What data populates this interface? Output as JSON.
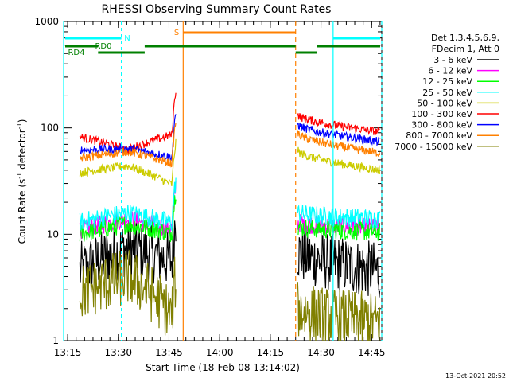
{
  "chart_data": {
    "type": "line",
    "title": "RHESSI Observing Summary Count Rates",
    "xlabel": "Start Time (18-Feb-08 13:14:02)",
    "ylabel_main": "Count Rate (s",
    "ylabel_sup1": "-1",
    "ylabel_mid": " detector",
    "ylabel_sup2": "-1",
    "ylabel_end": ")",
    "x_range_min": [
      13.23,
      14.8
    ],
    "y_range": [
      1,
      1000
    ],
    "y_scale": "log",
    "x_ticks": [
      {
        "t": 13.25,
        "label": "13:15"
      },
      {
        "t": 13.5,
        "label": "13:30"
      },
      {
        "t": 13.75,
        "label": "13:45"
      },
      {
        "t": 14.0,
        "label": "14:00"
      },
      {
        "t": 14.25,
        "label": "14:15"
      },
      {
        "t": 14.5,
        "label": "14:30"
      },
      {
        "t": 14.75,
        "label": "14:45"
      }
    ],
    "y_ticks": [
      {
        "v": 1,
        "label": "1"
      },
      {
        "v": 10,
        "label": "10"
      },
      {
        "v": 100,
        "label": "100"
      },
      {
        "v": 1000,
        "label": "1000"
      }
    ],
    "legend_header": [
      "Det 1,3,4,5,6,9,",
      "FDecim 1, Att 0"
    ],
    "series": [
      {
        "name": "3 - 6 keV",
        "color": "#000000",
        "seg1": [
          4.5,
          7.5,
          5.5
        ],
        "seg2": [
          7.0,
          4.5
        ]
      },
      {
        "name": "6 - 12 keV",
        "color": "#ff00ff",
        "seg1": [
          11,
          14,
          11
        ],
        "seg2": [
          13,
          11.5
        ]
      },
      {
        "name": "12 - 25 keV",
        "color": "#00ff00",
        "seg1": [
          10,
          12.5,
          10
        ],
        "seg2": [
          12,
          10.5
        ]
      },
      {
        "name": "25 - 50 keV",
        "color": "#00ffff",
        "seg1": [
          13,
          16,
          12.5
        ],
        "seg2": [
          16,
          14
        ]
      },
      {
        "name": "50 - 100 keV",
        "color": "#cccc00",
        "seg1": [
          38,
          44,
          28
        ],
        "seg2": [
          62,
          40
        ]
      },
      {
        "name": "100 - 300 keV",
        "color": "#ff0000",
        "seg1": [
          82,
          62,
          88
        ],
        "seg2": [
          135,
          92
        ]
      },
      {
        "name": "300 - 800 keV",
        "color": "#0000ff",
        "seg1": [
          62,
          64,
          52
        ],
        "seg2": [
          110,
          74
        ]
      },
      {
        "name": "800 - 7000 keV",
        "color": "#ff8000",
        "seg1": [
          52,
          60,
          45
        ],
        "seg2": [
          90,
          58
        ]
      },
      {
        "name": "7000 - 15000 keV",
        "color": "#808000",
        "seg1": [
          2.8,
          4.0,
          1.5
        ],
        "seg2": [
          2.0,
          1.5
        ]
      }
    ],
    "flags": [
      {
        "label": "N",
        "color": "#00ffff"
      },
      {
        "label": "S",
        "color": "#ff8000"
      },
      {
        "label": "RD0",
        "color": "#008000"
      },
      {
        "label": "RD4",
        "color": "#008000"
      }
    ],
    "footer_date": "13-Oct-2021 20:52"
  }
}
